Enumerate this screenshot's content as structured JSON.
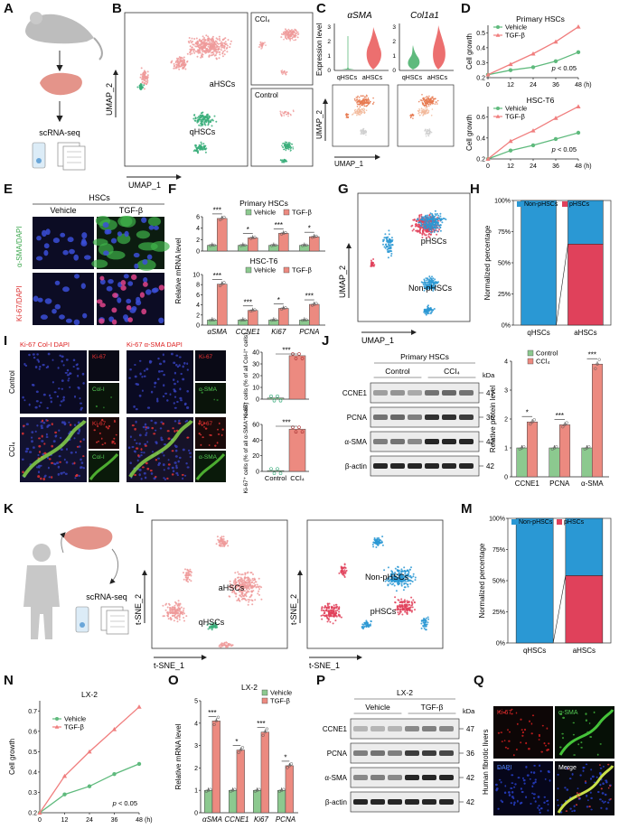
{
  "panel_letters": [
    "A",
    "B",
    "C",
    "D",
    "E",
    "F",
    "G",
    "H",
    "I",
    "J",
    "K",
    "L",
    "M",
    "N",
    "O",
    "P",
    "Q"
  ],
  "legend": {
    "vehicle": "Vehicle",
    "tgfb": "TGF-β",
    "control": "Control",
    "ccl4": "CCl₄",
    "non_phscs": "Non-pHSCs",
    "phscs": "pHSCs"
  },
  "panel_a": {
    "label": "scRNA-seq"
  },
  "panel_b": {
    "xlabel": "UMAP_1",
    "ylabel": "UMAP_2",
    "cluster_a": "aHSCs",
    "cluster_q": "qHSCs",
    "inset_top": "CCl₄",
    "inset_bottom": "Control"
  },
  "panel_c": {
    "gene1": "αSMA",
    "gene2": "Col1a1",
    "ylabel": "Expression level",
    "cat1": "qHSCs",
    "cat2": "aHSCs",
    "xlabel": "UMAP_1",
    "ylabel2": "UMAP_2",
    "yticks": [
      "0",
      "1",
      "2",
      "3"
    ]
  },
  "panel_e": {
    "header": "HSCs",
    "col1": "Vehicle",
    "col2": "TGF-β",
    "row1": "α-SMA/DAPI",
    "row2": "Ki-67/DAPI"
  },
  "panel_g": {
    "xlabel": "UMAP_1",
    "ylabel": "UMAP_2",
    "label1": "pHSCs",
    "label2": "Non-pHSCs"
  },
  "panel_i": {
    "col1_title": "Ki-67  Col-I  DAPI",
    "col2_title": "Ki-67  α-SMA  DAPI",
    "row1": "Control",
    "row2": "CCl₄",
    "small_labels": [
      "Ki-67",
      "Col-I",
      "Ki-67",
      "α-SMA"
    ],
    "bar1_ylabel": "Ki-67⁺ cells (% of all Col-I⁺ cells)",
    "bar2_ylabel": "Ki-67⁺ cells (% of all α-SMA⁺ cells)",
    "bar1_yticks": [
      "0",
      "10",
      "20",
      "30",
      "40"
    ],
    "bar2_yticks": [
      "0",
      "20",
      "40",
      "60"
    ],
    "bar_cats": [
      "Control",
      "CCl₄"
    ],
    "sig": "***"
  },
  "panel_j": {
    "header": "Primary HSCs",
    "groups": [
      "Control",
      "CCl₄"
    ],
    "kda": "kDa",
    "blots": [
      {
        "name": "CCNE1",
        "kda": "47"
      },
      {
        "name": "PCNA",
        "kda": "36"
      },
      {
        "name": "α-SMA",
        "kda": "42"
      },
      {
        "name": "β-actin",
        "kda": "42"
      }
    ],
    "ylabel": "Relative protein level",
    "yticks": [
      "0",
      "1",
      "2",
      "3",
      "4"
    ],
    "cats": [
      "CCNE1",
      "PCNA",
      "α-SMA"
    ],
    "sigs": [
      "*",
      "***",
      "***"
    ]
  },
  "panel_k": {
    "label": "scRNA-seq"
  },
  "panel_l": {
    "xlabel": "t-SNE_1",
    "ylabel": "t-SNE_2",
    "left_a": "aHSCs",
    "left_q": "qHSCs",
    "right_n": "Non-pHSCs",
    "right_p": "pHSCs"
  },
  "panel_p": {
    "header": "LX-2",
    "groups": [
      "Vehicle",
      "TGF-β"
    ],
    "kda": "kDa",
    "blots": [
      {
        "name": "CCNE1",
        "kda": "47"
      },
      {
        "name": "PCNA",
        "kda": "36"
      },
      {
        "name": "α-SMA",
        "kda": "42"
      },
      {
        "name": "β-actin",
        "kda": "42"
      }
    ]
  },
  "panel_q": {
    "side": "Human fibrotic livers",
    "labels": [
      "Ki-67",
      "α-SMA",
      "DAPI",
      "Merge"
    ]
  },
  "chart_data": [
    {
      "id": "D1",
      "type": "line",
      "title": "Primary HSCs",
      "xlabel": "(h)",
      "ylabel": "Cell growth",
      "x": [
        0,
        12,
        24,
        36,
        48
      ],
      "series": [
        {
          "name": "Vehicle",
          "values": [
            0.22,
            0.25,
            0.27,
            0.31,
            0.37
          ],
          "color": "#5fba7d"
        },
        {
          "name": "TGF-β",
          "values": [
            0.22,
            0.29,
            0.36,
            0.44,
            0.54
          ],
          "color": "#f07e7e"
        }
      ],
      "annotation": "p < 0.05",
      "xticks": [
        "0",
        "12",
        "24",
        "36",
        "48"
      ]
    },
    {
      "id": "D2",
      "type": "line",
      "title": "HSC-T6",
      "xlabel": "(h)",
      "ylabel": "Cell growth",
      "x": [
        0,
        12,
        24,
        36,
        48
      ],
      "series": [
        {
          "name": "Vehicle",
          "values": [
            0.2,
            0.28,
            0.33,
            0.39,
            0.45
          ],
          "color": "#5fba7d"
        },
        {
          "name": "TGF-β",
          "values": [
            0.2,
            0.37,
            0.47,
            0.59,
            0.7
          ],
          "color": "#f07e7e"
        }
      ],
      "annotation": "p < 0.05",
      "xticks": [
        "0",
        "12",
        "24",
        "36",
        "48"
      ]
    },
    {
      "id": "F1",
      "type": "bar",
      "title": "Primary HSCs",
      "ylabel": "Relative mRNA level",
      "categories": [
        "αSMA",
        "CCNE1",
        "Ki67",
        "PCNA"
      ],
      "series": [
        {
          "name": "Vehicle",
          "values": [
            1,
            1,
            1,
            1
          ],
          "color": "#8cc98f"
        },
        {
          "name": "TGF-β",
          "values": [
            5.7,
            2.3,
            3.1,
            2.5
          ],
          "color": "#ec8a80"
        }
      ],
      "sig": [
        "***",
        "*",
        "***",
        "*"
      ],
      "ylim": [
        0,
        6
      ],
      "yticks": [
        "0",
        "2",
        "4",
        "6"
      ]
    },
    {
      "id": "F2",
      "type": "bar",
      "title": "HSC-T6",
      "ylabel": "Relative mRNA level",
      "categories": [
        "αSMA",
        "CCNE1",
        "Ki67",
        "PCNA"
      ],
      "series": [
        {
          "name": "Vehicle",
          "values": [
            1,
            1,
            1,
            1
          ],
          "color": "#8cc98f"
        },
        {
          "name": "TGF-β",
          "values": [
            8.1,
            2.9,
            3.3,
            4.1
          ],
          "color": "#ec8a80"
        }
      ],
      "sig": [
        "***",
        "***",
        "*",
        "***"
      ],
      "ylim": [
        0,
        10
      ],
      "yticks": [
        "0",
        "2",
        "4",
        "6",
        "8",
        "10"
      ]
    },
    {
      "id": "H",
      "type": "bar",
      "stacked": true,
      "ylabel": "Normalized percentage",
      "categories": [
        "qHSCs",
        "aHSCs"
      ],
      "series": [
        {
          "name": "Non-pHSCs",
          "values": [
            100,
            35
          ],
          "color": "#2a98d4"
        },
        {
          "name": "pHSCs",
          "values": [
            0,
            65
          ],
          "color": "#e0415b"
        }
      ],
      "yticks": [
        "0%",
        "25%",
        "50%",
        "75%",
        "100%"
      ]
    },
    {
      "id": "I1",
      "type": "bar",
      "categories": [
        "Control",
        "CCl₄"
      ],
      "values": [
        1,
        37
      ],
      "ylim": [
        0,
        40
      ]
    },
    {
      "id": "I2",
      "type": "bar",
      "categories": [
        "Control",
        "CCl₄"
      ],
      "values": [
        1,
        54
      ],
      "ylim": [
        0,
        60
      ]
    },
    {
      "id": "J",
      "type": "bar",
      "ylabel": "Relative protein level",
      "categories": [
        "CCNE1",
        "PCNA",
        "α-SMA"
      ],
      "series": [
        {
          "name": "Control",
          "values": [
            1,
            1,
            1
          ],
          "color": "#8cc98f"
        },
        {
          "name": "CCl₄",
          "values": [
            1.9,
            1.8,
            3.9
          ],
          "color": "#ec8a80"
        }
      ],
      "ylim": [
        0,
        4
      ]
    },
    {
      "id": "M",
      "type": "bar",
      "stacked": true,
      "ylabel": "Normalized percentage",
      "categories": [
        "qHSCs",
        "aHSCs"
      ],
      "series": [
        {
          "name": "Non-pHSCs",
          "values": [
            100,
            46
          ],
          "color": "#2a98d4"
        },
        {
          "name": "pHSCs",
          "values": [
            0,
            54
          ],
          "color": "#e0415b"
        }
      ],
      "yticks": [
        "0%",
        "25%",
        "50%",
        "75%",
        "100%"
      ]
    },
    {
      "id": "N",
      "type": "line",
      "title": "LX-2",
      "xlabel": "(h)",
      "ylabel": "Cell growth",
      "x": [
        0,
        12,
        24,
        36,
        48
      ],
      "series": [
        {
          "name": "Vehicle",
          "values": [
            0.2,
            0.29,
            0.33,
            0.39,
            0.44
          ],
          "color": "#5fba7d"
        },
        {
          "name": "TGF-β",
          "values": [
            0.2,
            0.38,
            0.5,
            0.61,
            0.72
          ],
          "color": "#f07e7e"
        }
      ],
      "annotation": "p < 0.05",
      "xticks": [
        "0",
        "12",
        "24",
        "36",
        "48"
      ],
      "yticks": [
        "0.2",
        "0.3",
        "0.4",
        "0.5",
        "0.6",
        "0.7"
      ]
    },
    {
      "id": "O",
      "type": "bar",
      "title": "LX-2",
      "ylabel": "Relative mRNA level",
      "categories": [
        "αSMA",
        "CCNE1",
        "Ki67",
        "PCNA"
      ],
      "series": [
        {
          "name": "Vehicle",
          "values": [
            1,
            1,
            1,
            1
          ],
          "color": "#8cc98f"
        },
        {
          "name": "TGF-β",
          "values": [
            4.1,
            2.8,
            3.6,
            2.1
          ],
          "color": "#ec8a80"
        }
      ],
      "sig": [
        "***",
        "*",
        "***",
        "*"
      ],
      "ylim": [
        0,
        5
      ],
      "yticks": [
        "0",
        "1",
        "2",
        "3",
        "4",
        "5"
      ]
    }
  ]
}
